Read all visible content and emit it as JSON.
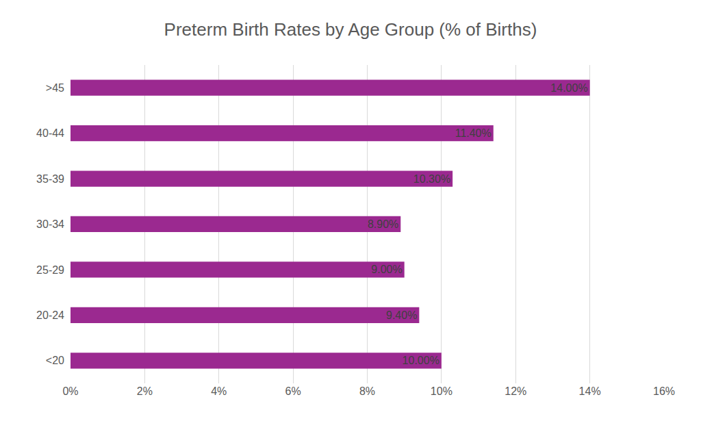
{
  "chart_data": {
    "type": "bar",
    "orientation": "horizontal",
    "title": "Preterm Birth Rates by Age Group (% of Births)",
    "categories": [
      "<20",
      "20-24",
      "25-29",
      "30-34",
      "35-39",
      "40-44",
      ">45"
    ],
    "values": [
      10.0,
      9.4,
      9.0,
      8.9,
      10.3,
      11.4,
      14.0
    ],
    "value_labels": [
      "10.00%",
      "9.40%",
      "9.00%",
      "8.90%",
      "10.30%",
      "11.40%",
      "14.00%"
    ],
    "data_labels": true,
    "color": "#9b2990",
    "xlim": [
      0,
      16
    ],
    "xticks": [
      {
        "value": 0,
        "label": "0%"
      },
      {
        "value": 2,
        "label": "2%"
      },
      {
        "value": 4,
        "label": "4%"
      },
      {
        "value": 6,
        "label": "6%"
      },
      {
        "value": 8,
        "label": "8%"
      },
      {
        "value": 10,
        "label": "10%"
      },
      {
        "value": 12,
        "label": "12%"
      },
      {
        "value": 14,
        "label": "14%"
      },
      {
        "value": 16,
        "label": "16%"
      }
    ],
    "grid": true
  }
}
